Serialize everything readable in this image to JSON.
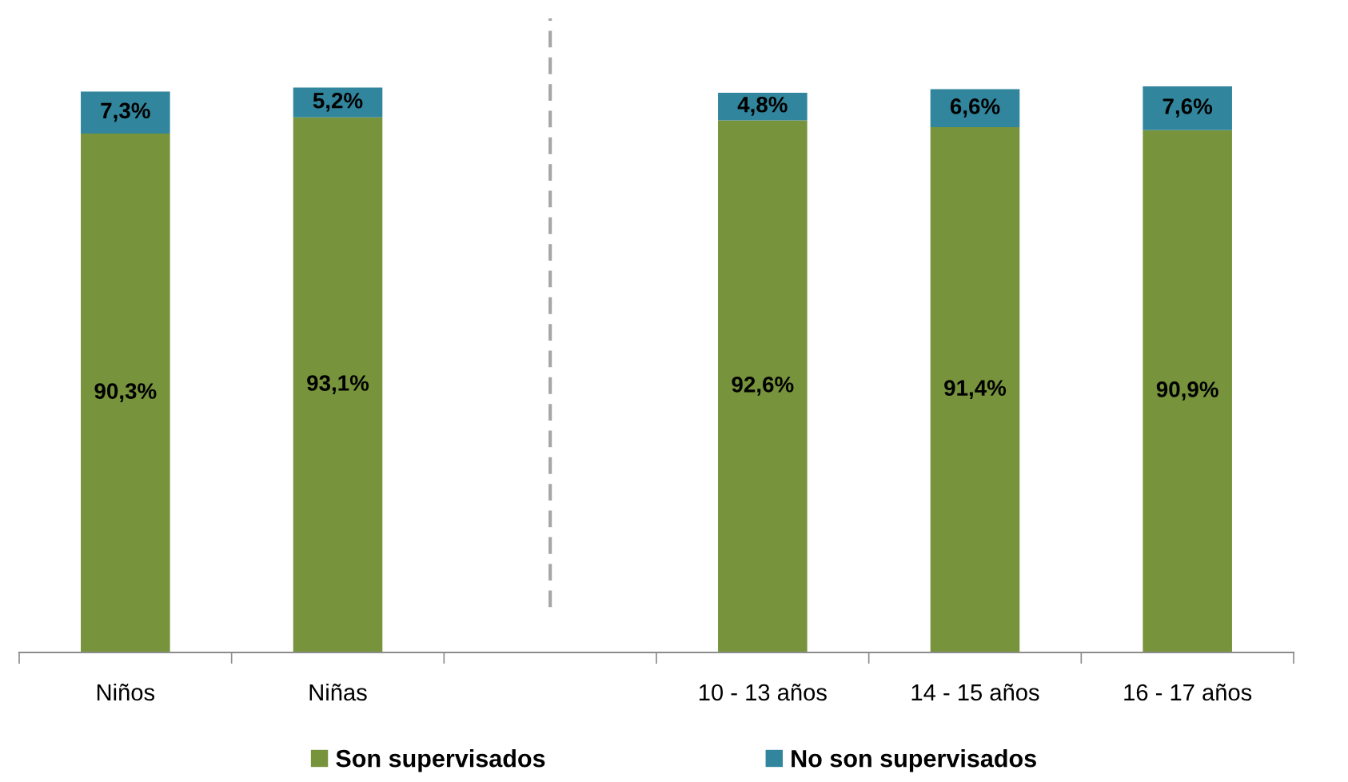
{
  "chart_data": {
    "type": "bar",
    "stacked": true,
    "categories": [
      "Niños",
      "Niñas",
      null,
      "10 - 13 años",
      "14 - 15 años",
      "16 - 17 años"
    ],
    "series": [
      {
        "name": "Son supervisados",
        "color": "#77933c",
        "values": [
          90.3,
          93.1,
          null,
          92.6,
          91.4,
          90.9
        ],
        "value_labels": [
          "90,3%",
          "93,1%",
          null,
          "92,6%",
          "91,4%",
          "90,9%"
        ]
      },
      {
        "name": "No son supervisados",
        "color": "#31859c",
        "values": [
          7.3,
          5.2,
          null,
          4.8,
          6.6,
          7.6
        ],
        "value_labels": [
          "7,3%",
          "5,2%",
          null,
          "4,8%",
          "6,6%",
          "7,6%"
        ]
      }
    ],
    "legend": "bottom"
  }
}
